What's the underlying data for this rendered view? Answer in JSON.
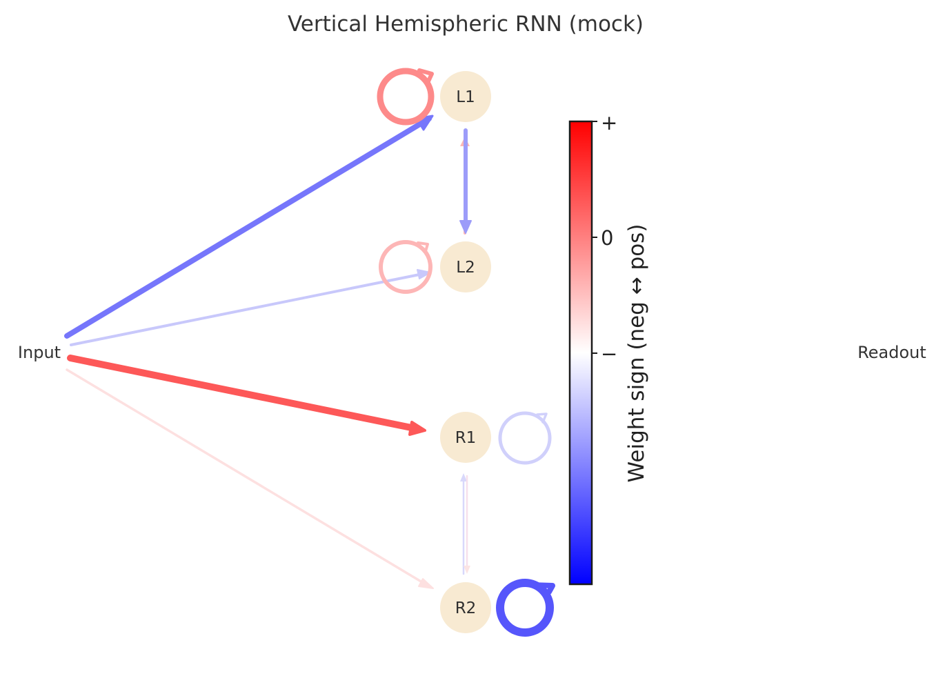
{
  "title": "Vertical Hemispheric RNN (mock)",
  "nodes": [
    {
      "id": "L1",
      "label": "L1"
    },
    {
      "id": "L2",
      "label": "L2"
    },
    {
      "id": "R1",
      "label": "R1"
    },
    {
      "id": "R2",
      "label": "R2"
    }
  ],
  "input_label": "Input",
  "readout_label": "Readout",
  "colorbar": {
    "label": "Weight sign (neg ↔ pos)",
    "ticks": {
      "plus": "+",
      "zero": "0",
      "minus": "−"
    }
  },
  "colors": {
    "node_fill": "#f8ead2",
    "strong_blue": "#7676fb",
    "light_blue": "#c8c8fb",
    "mid_blue": "#9c9cf9",
    "strong_red": "#fd5858",
    "light_red": "#fde0e0",
    "salmon": "#fd8a8a",
    "pink": "#fdb6b6",
    "deep_blue": "#5656fb",
    "pale_blue": "#d0d0fb"
  }
}
